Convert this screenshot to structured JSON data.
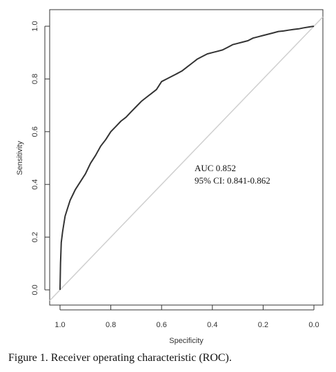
{
  "figure": {
    "caption": "Figure 1. Receiver operating characteristic (ROC)."
  },
  "chart_data": {
    "type": "line",
    "xlabel": "Specificity",
    "ylabel": "Sensitivity",
    "xlim": [
      1.0,
      0.0
    ],
    "ylim": [
      0.0,
      1.0
    ],
    "x_reversed": true,
    "x_ticks": [
      "1.0",
      "0.8",
      "0.6",
      "0.4",
      "0.2",
      "0.0"
    ],
    "y_ticks": [
      "0.0",
      "0.2",
      "0.4",
      "0.6",
      "0.8",
      "1.0"
    ],
    "grid": false,
    "annotations": [
      "AUC 0.852",
      "95% CI: 0.841-0.862"
    ],
    "reference_line": {
      "x": [
        1.0,
        0.0
      ],
      "y": [
        0.0,
        1.0
      ],
      "color": "#cfcfcf"
    },
    "series": [
      {
        "color": "#333333",
        "x": [
          1.0,
          0.998,
          0.995,
          0.99,
          0.985,
          0.98,
          0.97,
          0.96,
          0.95,
          0.94,
          0.92,
          0.9,
          0.88,
          0.86,
          0.84,
          0.82,
          0.8,
          0.78,
          0.76,
          0.74,
          0.72,
          0.7,
          0.68,
          0.66,
          0.64,
          0.62,
          0.6,
          0.58,
          0.56,
          0.54,
          0.52,
          0.5,
          0.48,
          0.46,
          0.44,
          0.42,
          0.4,
          0.38,
          0.36,
          0.34,
          0.32,
          0.3,
          0.28,
          0.26,
          0.24,
          0.22,
          0.2,
          0.18,
          0.16,
          0.14,
          0.12,
          0.1,
          0.08,
          0.06,
          0.04,
          0.02,
          0.0
        ],
        "y": [
          0.0,
          0.1,
          0.18,
          0.22,
          0.25,
          0.28,
          0.31,
          0.34,
          0.36,
          0.38,
          0.41,
          0.44,
          0.48,
          0.51,
          0.545,
          0.57,
          0.6,
          0.62,
          0.64,
          0.655,
          0.675,
          0.695,
          0.715,
          0.73,
          0.745,
          0.76,
          0.79,
          0.8,
          0.81,
          0.82,
          0.83,
          0.845,
          0.86,
          0.875,
          0.885,
          0.895,
          0.9,
          0.905,
          0.91,
          0.92,
          0.93,
          0.935,
          0.94,
          0.945,
          0.955,
          0.96,
          0.965,
          0.97,
          0.975,
          0.98,
          0.982,
          0.985,
          0.988,
          0.99,
          0.994,
          0.997,
          1.0
        ]
      }
    ]
  }
}
